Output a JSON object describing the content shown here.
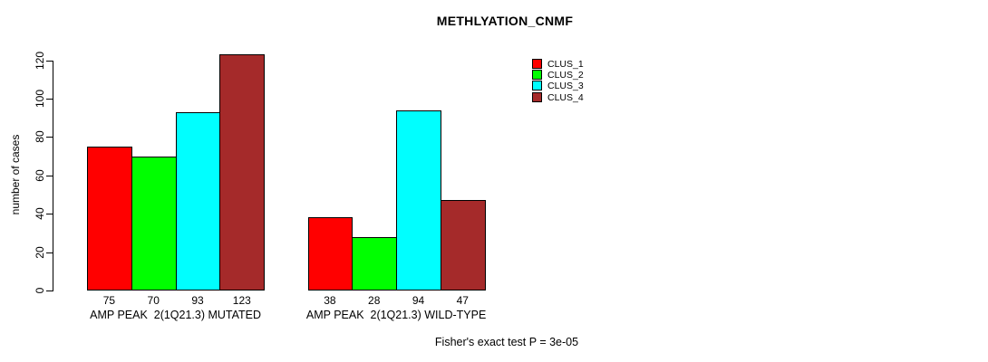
{
  "chart": {
    "title": "METHLYATION_CNMF",
    "ylabel": "number of cases",
    "footnote": "Fisher's exact test P = 3e-05"
  },
  "chart_data": {
    "type": "bar",
    "title": "METHLYATION_CNMF",
    "xlabel": "",
    "ylabel": "number of cases",
    "categories": [
      "AMP PEAK  2(1Q21.3) MUTATED",
      "AMP PEAK  2(1Q21.3) WILD-TYPE"
    ],
    "series": [
      {
        "name": "CLUS_1",
        "color": "#ff0000",
        "values": [
          75,
          38
        ]
      },
      {
        "name": "CLUS_2",
        "color": "#00ff00",
        "values": [
          70,
          28
        ]
      },
      {
        "name": "CLUS_3",
        "color": "#00ffff",
        "values": [
          93,
          94
        ]
      },
      {
        "name": "CLUS_4",
        "color": "#a52a2a",
        "values": [
          123,
          47
        ]
      }
    ],
    "yticks": [
      0,
      20,
      40,
      60,
      80,
      100,
      120
    ],
    "ylim": [
      0,
      130
    ],
    "grid": false,
    "bar_value_labels_shown": true,
    "legend_position": "top-right",
    "annotation": "Fisher's exact test P = 3e-05"
  }
}
